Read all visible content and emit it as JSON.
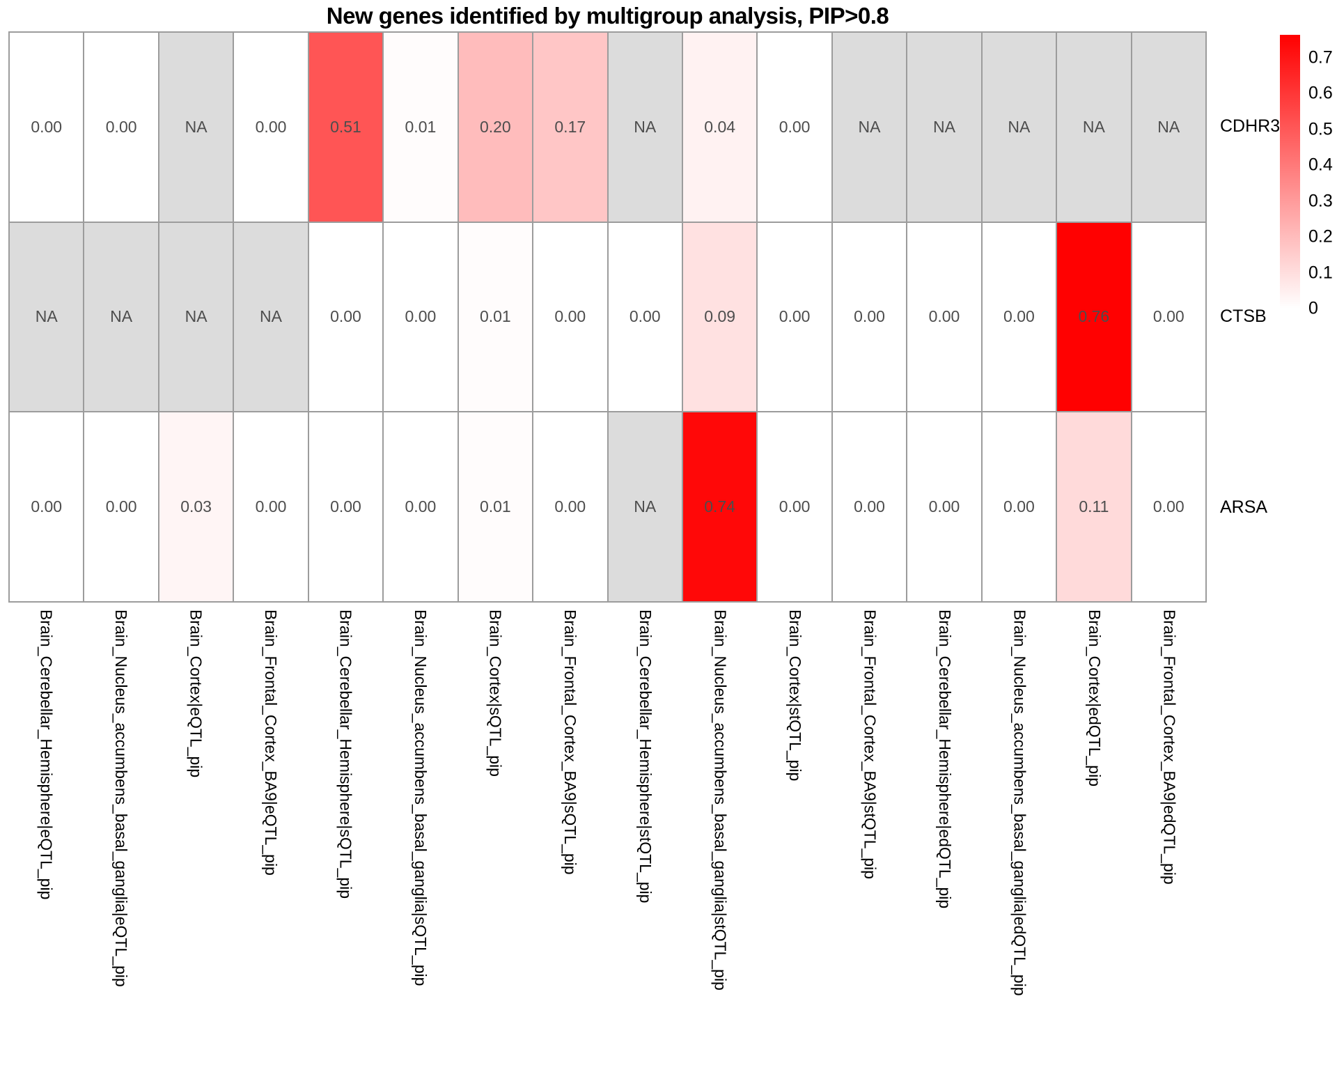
{
  "title": "New genes identified by multigroup analysis, PIP>0.8",
  "chart_data": {
    "type": "heatmap",
    "title": "New genes identified by multigroup analysis, PIP>0.8",
    "columns": [
      "Brain_Cerebellar_Hemisphere|eQTL_pip",
      "Brain_Nucleus_accumbens_basal_ganglia|eQTL_pip",
      "Brain_Cortex|eQTL_pip",
      "Brain_Frontal_Cortex_BA9|eQTL_pip",
      "Brain_Cerebellar_Hemisphere|sQTL_pip",
      "Brain_Nucleus_accumbens_basal_ganglia|sQTL_pip",
      "Brain_Cortex|sQTL_pip",
      "Brain_Frontal_Cortex_BA9|sQTL_pip",
      "Brain_Cerebellar_Hemisphere|stQTL_pip",
      "Brain_Nucleus_accumbens_basal_ganglia|stQTL_pip",
      "Brain_Cortex|stQTL_pip",
      "Brain_Frontal_Cortex_BA9|stQTL_pip",
      "Brain_Cerebellar_Hemisphere|edQTL_pip",
      "Brain_Nucleus_accumbens_basal_ganglia|edQTL_pip",
      "Brain_Cortex|edQTL_pip",
      "Brain_Frontal_Cortex_BA9|edQTL_pip"
    ],
    "rows": [
      "CDHR3",
      "CTSB",
      "ARSA"
    ],
    "values": [
      [
        0.0,
        0.0,
        null,
        0.0,
        0.51,
        0.01,
        0.2,
        0.17,
        null,
        0.04,
        0.0,
        null,
        null,
        null,
        null,
        null
      ],
      [
        null,
        null,
        null,
        null,
        0.0,
        0.0,
        0.01,
        0.0,
        0.0,
        0.09,
        0.0,
        0.0,
        0.0,
        0.0,
        0.76,
        0.0
      ],
      [
        0.0,
        0.0,
        0.03,
        0.0,
        0.0,
        0.0,
        0.01,
        0.0,
        null,
        0.74,
        0.0,
        0.0,
        0.0,
        0.0,
        0.11,
        0.0
      ]
    ],
    "na_label": "NA",
    "value_decimals": 2,
    "scale_max": 0.764,
    "colors": {
      "low": "#FFFFFF",
      "high": "#FF0000",
      "na_fill": "#DCDCDC",
      "grid": "#9C9C9C",
      "cell_text": "#4D4D4D"
    },
    "legend": {
      "position": "right",
      "ticks": [
        {
          "label": "0.7",
          "value": 0.7
        },
        {
          "label": "0.6",
          "value": 0.6
        },
        {
          "label": "0.5",
          "value": 0.5
        },
        {
          "label": "0.4",
          "value": 0.4
        },
        {
          "label": "0.3",
          "value": 0.3
        },
        {
          "label": "0.2",
          "value": 0.2
        },
        {
          "label": "0.1",
          "value": 0.1
        },
        {
          "label": "0",
          "value": 0
        }
      ]
    }
  }
}
